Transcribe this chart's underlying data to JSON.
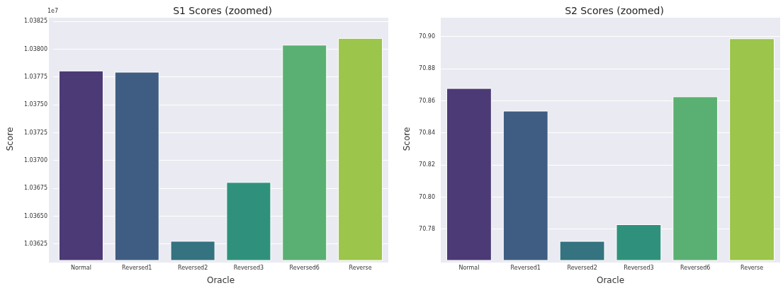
{
  "chart_data": [
    {
      "type": "bar",
      "title": "S1 Scores (zoomed)",
      "xlabel": "Oracle",
      "ylabel": "Score",
      "annotations": [
        "1e7"
      ],
      "categories": [
        "Normal",
        "Reversed1",
        "Reversed2",
        "Reversed3",
        "Reversed6",
        "Reverse"
      ],
      "values": [
        1.037806,
        1.037795,
        1.036277,
        1.036805,
        1.038038,
        1.038098
      ],
      "colors": [
        "#4b3a75",
        "#3f5d82",
        "#34737f",
        "#2f917c",
        "#5ab072",
        "#9bc54b"
      ],
      "ylim": [
        1.036102,
        1.038281
      ],
      "yticks": [
        {
          "value": 1.03625,
          "label": "1.03625"
        },
        {
          "value": 1.0365,
          "label": "1.03650"
        },
        {
          "value": 1.03675,
          "label": "1.03675"
        },
        {
          "value": 1.037,
          "label": "1.03700"
        },
        {
          "value": 1.03725,
          "label": "1.03725"
        },
        {
          "value": 1.0375,
          "label": "1.03750"
        },
        {
          "value": 1.03775,
          "label": "1.03775"
        },
        {
          "value": 1.038,
          "label": "1.03800"
        },
        {
          "value": 1.03825,
          "label": "1.03825"
        }
      ],
      "grid": "y"
    },
    {
      "type": "bar",
      "title": "S2 Scores (zoomed)",
      "xlabel": "Oracle",
      "ylabel": "Score",
      "categories": [
        "Normal",
        "Reversed1",
        "Reversed2",
        "Reversed3",
        "Reversed6",
        "Reverse"
      ],
      "values": [
        70.8678,
        70.8537,
        70.7725,
        70.7829,
        70.8626,
        70.8988
      ],
      "colors": [
        "#4b3a75",
        "#3f5d82",
        "#34737f",
        "#2f917c",
        "#5ab072",
        "#9bc54b"
      ],
      "ylim": [
        70.7604,
        70.9117
      ],
      "yticks": [
        {
          "value": 70.78,
          "label": "70.78"
        },
        {
          "value": 70.8,
          "label": "70.80"
        },
        {
          "value": 70.82,
          "label": "70.82"
        },
        {
          "value": 70.84,
          "label": "70.84"
        },
        {
          "value": 70.86,
          "label": "70.86"
        },
        {
          "value": 70.88,
          "label": "70.88"
        },
        {
          "value": 70.9,
          "label": "70.90"
        }
      ],
      "grid": "y"
    }
  ]
}
